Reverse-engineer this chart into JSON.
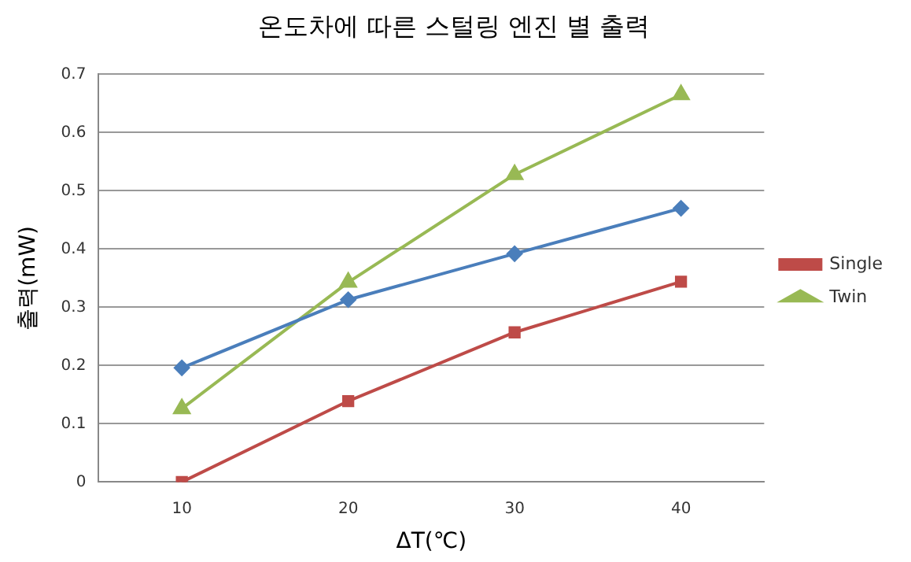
{
  "chart_data": {
    "type": "line",
    "title": "온도차에 따른 스털링 엔진 별 출력",
    "xlabel": "ΔT(℃)",
    "ylabel": "출력(mW)",
    "categories": [
      "10",
      "20",
      "30",
      "40"
    ],
    "series": [
      {
        "color": "#4a7ebb",
        "marker": "diamond",
        "values": [
          0.196,
          0.313,
          0.392,
          0.47
        ]
      },
      {
        "name": "Single",
        "color": "#be4b48",
        "marker": "square",
        "values": [
          0,
          0.139,
          0.257,
          0.344
        ]
      },
      {
        "name": "Twin",
        "color": "#98b954",
        "marker": "triangle",
        "values": [
          0.126,
          0.343,
          0.528,
          0.665
        ]
      }
    ],
    "ylim": [
      0,
      0.7
    ],
    "yticks": [
      0,
      0.1,
      0.2,
      0.3,
      0.4,
      0.5,
      0.6,
      0.7
    ],
    "grid": "y",
    "legend": "right",
    "line_style": "solid"
  }
}
